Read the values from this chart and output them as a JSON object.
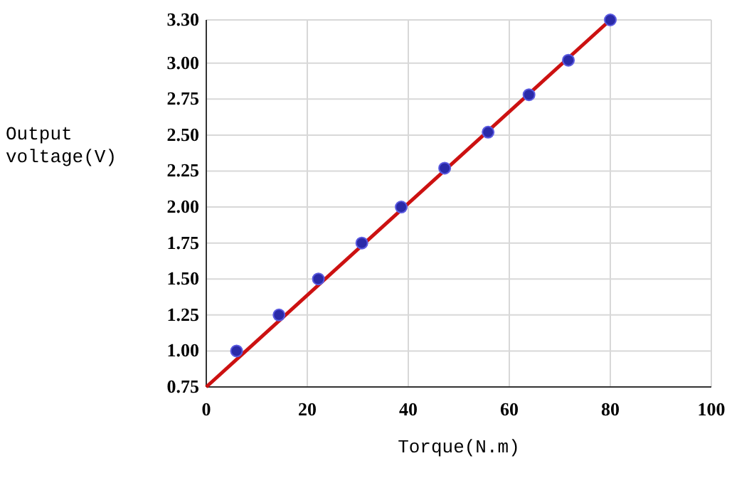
{
  "chart_data": {
    "type": "scatter",
    "xlabel": "Torque(N.m)",
    "ylabel": "Output voltage(V)",
    "xlim": [
      0,
      100
    ],
    "xticks": [
      0,
      20,
      40,
      60,
      80,
      100
    ],
    "ylim": [
      0.75,
      3.3
    ],
    "yticks": [
      {
        "value": 0.75,
        "label": "0.75"
      },
      {
        "value": 1,
        "label": "1.00"
      },
      {
        "value": 1.25,
        "label": "1.25"
      },
      {
        "value": 1.5,
        "label": "1.50"
      },
      {
        "value": 1.75,
        "label": "1.75"
      },
      {
        "value": 2,
        "label": "2.00"
      },
      {
        "value": 2.25,
        "label": "2.25"
      },
      {
        "value": 2.5,
        "label": "2.50"
      },
      {
        "value": 2.75,
        "label": "2.75"
      },
      {
        "value": 3,
        "label": "3.00"
      },
      {
        "value": 3.3,
        "label": "3.30"
      }
    ],
    "grid": true,
    "series": [
      {
        "type": "line",
        "marker": "none",
        "color": "#cc1111",
        "x": [
          0,
          80
        ],
        "values": [
          0.75,
          3.3
        ]
      },
      {
        "marker": "circle",
        "color": "#2a2aa8",
        "x": [
          6,
          14.4,
          22.2,
          30.8,
          38.6,
          47.2,
          55.8,
          63.9,
          71.7,
          80
        ],
        "values": [
          1,
          1.25,
          1.5,
          1.75,
          2,
          2.27,
          2.52,
          2.78,
          3.02,
          3.3
        ]
      }
    ]
  }
}
